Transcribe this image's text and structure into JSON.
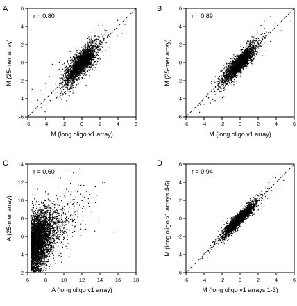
{
  "colors": {
    "points": "#000000",
    "background": "#ffffff"
  },
  "chart_data": [
    {
      "type": "scatter",
      "panel": "A",
      "annotation": "r = 0.80",
      "xlabel": "M (long oligo v1 array)",
      "ylabel": "M (25-mer array)",
      "xlim": [
        -6,
        6
      ],
      "ylim": [
        -6,
        6
      ],
      "xticks": [
        "-6",
        "-4",
        "-2",
        "0",
        "2",
        "4",
        "6"
      ],
      "yticks": [
        "-6",
        "-4",
        "-2",
        "0",
        "2",
        "4",
        "6"
      ],
      "reference_line": "identity (dashed)",
      "points": [
        [
          -0.2,
          -0.1
        ],
        [
          0.3,
          0.5
        ],
        [
          -1.0,
          -1.3
        ],
        [
          0.8,
          0.9
        ],
        [
          -0.5,
          -0.2
        ],
        [
          1.5,
          1.8
        ],
        [
          -2.0,
          -2.6
        ],
        [
          0.0,
          0.3
        ],
        [
          -3.5,
          -4.2
        ],
        [
          2.5,
          2.7
        ],
        [
          -1.5,
          -1.0
        ],
        [
          0.5,
          0.0
        ],
        [
          -4.5,
          -5.0
        ],
        [
          1.0,
          0.6
        ],
        [
          -0.8,
          -1.7
        ],
        [
          2.0,
          1.4
        ],
        [
          -2.8,
          -3.9
        ],
        [
          0.2,
          -0.7
        ],
        [
          -1.2,
          -0.4
        ],
        [
          1.2,
          2.4
        ]
      ],
      "points_note": "representative sample of a dense cloud (several thousand points) along the diagonal"
    },
    {
      "type": "scatter",
      "panel": "B",
      "annotation": "r = 0.89",
      "xlabel": "M (long oligo v1 array)",
      "ylabel": "M (25-mer array)",
      "xlim": [
        -6,
        6
      ],
      "ylim": [
        -6,
        6
      ],
      "xticks": [
        "-6",
        "-4",
        "-2",
        "0",
        "2",
        "4",
        "6"
      ],
      "yticks": [
        "-6",
        "-4",
        "-2",
        "0",
        "2",
        "4",
        "6"
      ],
      "reference_line": "identity (dashed)",
      "points": [
        [
          -0.2,
          -0.2
        ],
        [
          0.3,
          0.4
        ],
        [
          -1.0,
          -1.1
        ],
        [
          0.8,
          0.8
        ],
        [
          -0.5,
          -0.4
        ],
        [
          1.5,
          1.6
        ],
        [
          -2.0,
          -2.2
        ],
        [
          0.0,
          0.1
        ],
        [
          -3.5,
          -3.9
        ],
        [
          2.5,
          2.6
        ],
        [
          -1.5,
          -1.3
        ],
        [
          0.5,
          0.3
        ],
        [
          -4.0,
          -4.6
        ],
        [
          1.0,
          0.8
        ],
        [
          -0.8,
          -1.2
        ],
        [
          2.0,
          1.7
        ],
        [
          -2.8,
          -3.2
        ],
        [
          0.2,
          -0.3
        ],
        [
          -1.2,
          -0.9
        ],
        [
          1.2,
          1.7
        ]
      ],
      "points_note": "representative sample of a dense cloud (several thousand points) along the diagonal"
    },
    {
      "type": "scatter",
      "panel": "C",
      "annotation": "r = 0.60",
      "xlabel": "A (long oligo v1 array)",
      "ylabel": "A (25-mer array)",
      "xlim": [
        6,
        18
      ],
      "ylim": [
        2,
        14
      ],
      "xticks": [
        "6",
        "8",
        "10",
        "12",
        "14",
        "16",
        "18"
      ],
      "yticks": [
        "2",
        "4",
        "6",
        "8",
        "10",
        "12",
        "14"
      ],
      "reference_line": "none",
      "points": [
        [
          7.0,
          5.5
        ],
        [
          7.5,
          6.5
        ],
        [
          8.0,
          7.0
        ],
        [
          6.8,
          3.5
        ],
        [
          9.0,
          8.0
        ],
        [
          10.0,
          8.5
        ],
        [
          11.0,
          9.5
        ],
        [
          12.0,
          10.0
        ],
        [
          13.5,
          11.5
        ],
        [
          14.5,
          12.0
        ],
        [
          7.2,
          4.5
        ],
        [
          8.5,
          5.0
        ],
        [
          7.8,
          9.0
        ],
        [
          9.5,
          6.0
        ],
        [
          10.5,
          7.5
        ],
        [
          6.6,
          2.6
        ],
        [
          8.2,
          3.2
        ],
        [
          15.5,
          6.5
        ],
        [
          12.5,
          11.0
        ],
        [
          11.5,
          8.8
        ]
      ],
      "points_note": "representative sample of a dense cloud (several thousand points), densest near x 6.5-9"
    },
    {
      "type": "scatter",
      "panel": "D",
      "annotation": "r = 0.94",
      "xlabel": "M (long oligo v1 arrays 1-3)",
      "ylabel": "M (long oligo v1 arrays 4-6)",
      "xlim": [
        -6,
        6
      ],
      "ylim": [
        -6,
        6
      ],
      "xticks": [
        "-6",
        "-4",
        "-2",
        "0",
        "2",
        "4",
        "6"
      ],
      "yticks": [
        "-6",
        "-4",
        "-2",
        "0",
        "2",
        "4",
        "6"
      ],
      "reference_line": "identity (dashed)",
      "points": [
        [
          -0.2,
          -0.2
        ],
        [
          0.3,
          0.3
        ],
        [
          -1.0,
          -1.0
        ],
        [
          0.8,
          0.9
        ],
        [
          -0.5,
          -0.5
        ],
        [
          1.5,
          1.5
        ],
        [
          -2.0,
          -2.1
        ],
        [
          0.0,
          0.0
        ],
        [
          -3.5,
          -3.6
        ],
        [
          2.5,
          2.6
        ],
        [
          -1.5,
          -1.4
        ],
        [
          0.5,
          0.4
        ],
        [
          -4.2,
          -4.4
        ],
        [
          1.0,
          1.0
        ],
        [
          -0.8,
          -0.9
        ],
        [
          2.0,
          2.0
        ],
        [
          -2.8,
          -2.9
        ],
        [
          0.2,
          0.1
        ],
        [
          -1.2,
          -1.2
        ],
        [
          3.0,
          3.0
        ]
      ],
      "points_note": "representative sample of a dense cloud (several thousand points) tightly along the diagonal"
    }
  ]
}
